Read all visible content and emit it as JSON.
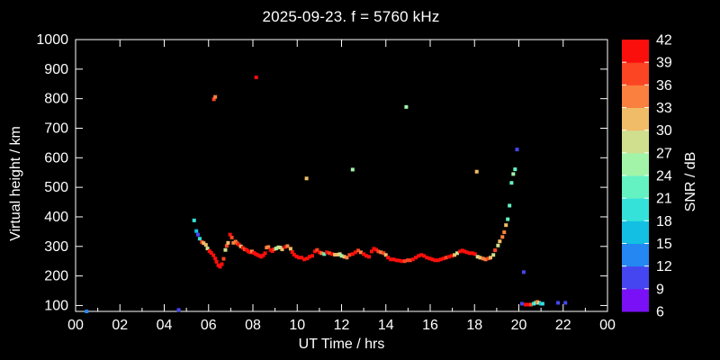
{
  "title": "2025-09-23. f = 5760 kHz",
  "axes": {
    "x_label": "UT Time / hrs",
    "y_label": "Virtual height / km",
    "x_tick_labels": [
      "00",
      "02",
      "04",
      "06",
      "08",
      "10",
      "12",
      "14",
      "16",
      "18",
      "20",
      "22",
      "00"
    ],
    "x_tick_hours": [
      0,
      2,
      4,
      6,
      8,
      10,
      12,
      14,
      16,
      18,
      20,
      22,
      24
    ],
    "x_minor_tick_hours": [
      1,
      3,
      5,
      7,
      9,
      11,
      13,
      15,
      17,
      19,
      21,
      23
    ],
    "y_tick_labels": [
      "100",
      "200",
      "300",
      "400",
      "500",
      "600",
      "700",
      "800",
      "900",
      "1000"
    ],
    "y_tick_values": [
      100,
      200,
      300,
      400,
      500,
      600,
      700,
      800,
      900,
      1000
    ]
  },
  "colorbar": {
    "label": "SNR / dB",
    "tick_values": [
      6,
      9,
      12,
      15,
      18,
      21,
      24,
      27,
      30,
      33,
      36,
      39,
      42
    ],
    "level_colors": [
      "#7a10f5",
      "#4646f0",
      "#2487f2",
      "#13bfe3",
      "#35e2d9",
      "#64f2c3",
      "#a2f4a9",
      "#cfdf8d",
      "#f0bc68",
      "#f9803e",
      "#fc4522",
      "#fb0f0c"
    ],
    "min": 6,
    "max": 42,
    "step": 3
  },
  "colors": {
    "background": "#000000",
    "frame": "#ffffff",
    "text": "#ffffff"
  },
  "chart_data": {
    "type": "scatter",
    "title": "2025-09-23. f = 5760 kHz",
    "xlabel": "UT Time / hrs",
    "ylabel": "Virtual height / km",
    "colorbar_label": "SNR / dB",
    "xlim": [
      0,
      24
    ],
    "ylim": [
      80,
      1000
    ],
    "colorbar_range": [
      6,
      42
    ],
    "grid": false,
    "point_format": [
      "ut_hours",
      "virtual_height_km",
      "snr_db"
    ],
    "points": [
      [
        5.35,
        388,
        19
      ],
      [
        5.45,
        352,
        16
      ],
      [
        5.52,
        340,
        10
      ],
      [
        5.6,
        326,
        19
      ],
      [
        5.7,
        315,
        37
      ],
      [
        5.78,
        311,
        31
      ],
      [
        5.88,
        305,
        31
      ],
      [
        5.95,
        293,
        28
      ],
      [
        6.04,
        284,
        40
      ],
      [
        6.12,
        278,
        40
      ],
      [
        6.22,
        270,
        40
      ],
      [
        6.3,
        259,
        40
      ],
      [
        6.36,
        248,
        40
      ],
      [
        6.44,
        236,
        40
      ],
      [
        6.52,
        231,
        40
      ],
      [
        6.6,
        240,
        40
      ],
      [
        6.68,
        258,
        37
      ],
      [
        6.76,
        288,
        28
      ],
      [
        6.82,
        302,
        37
      ],
      [
        6.88,
        312,
        31
      ],
      [
        6.97,
        340,
        40
      ],
      [
        7.05,
        330,
        37
      ],
      [
        7.12,
        312,
        34
      ],
      [
        7.22,
        316,
        34
      ],
      [
        7.3,
        310,
        37
      ],
      [
        7.38,
        305,
        40
      ],
      [
        7.46,
        300,
        31
      ],
      [
        7.55,
        295,
        40
      ],
      [
        7.63,
        290,
        37
      ],
      [
        7.72,
        288,
        40
      ],
      [
        7.8,
        283,
        40
      ],
      [
        7.88,
        280,
        40
      ],
      [
        7.96,
        283,
        34
      ],
      [
        8.05,
        278,
        40
      ],
      [
        8.13,
        274,
        40
      ],
      [
        8.22,
        271,
        40
      ],
      [
        8.3,
        268,
        40
      ],
      [
        8.38,
        265,
        40
      ],
      [
        8.47,
        270,
        40
      ],
      [
        8.55,
        277,
        40
      ],
      [
        8.62,
        296,
        34
      ],
      [
        8.7,
        298,
        34
      ],
      [
        8.8,
        288,
        40
      ],
      [
        8.88,
        284,
        40
      ],
      [
        8.96,
        290,
        37
      ],
      [
        9.05,
        293,
        25
      ],
      [
        9.15,
        297,
        28
      ],
      [
        9.24,
        296,
        28
      ],
      [
        9.32,
        290,
        31
      ],
      [
        9.45,
        298,
        40
      ],
      [
        9.56,
        301,
        34
      ],
      [
        9.7,
        292,
        31
      ],
      [
        9.78,
        281,
        40
      ],
      [
        9.86,
        272,
        40
      ],
      [
        9.97,
        266,
        40
      ],
      [
        10.08,
        262,
        40
      ],
      [
        10.2,
        262,
        40
      ],
      [
        10.32,
        256,
        40
      ],
      [
        10.45,
        259,
        40
      ],
      [
        10.56,
        265,
        40
      ],
      [
        10.68,
        268,
        40
      ],
      [
        10.8,
        283,
        40
      ],
      [
        10.9,
        288,
        37
      ],
      [
        11.0,
        280,
        40
      ],
      [
        11.1,
        277,
        34
      ],
      [
        11.22,
        274,
        22
      ],
      [
        11.34,
        280,
        40
      ],
      [
        11.46,
        277,
        37
      ],
      [
        11.58,
        274,
        40
      ],
      [
        11.7,
        272,
        31
      ],
      [
        11.82,
        272,
        31
      ],
      [
        11.92,
        274,
        28
      ],
      [
        12.0,
        268,
        25
      ],
      [
        12.12,
        265,
        31
      ],
      [
        12.24,
        262,
        34
      ],
      [
        12.36,
        271,
        37
      ],
      [
        12.5,
        274,
        40
      ],
      [
        12.62,
        280,
        40
      ],
      [
        12.75,
        286,
        37
      ],
      [
        12.87,
        280,
        34
      ],
      [
        13.0,
        274,
        40
      ],
      [
        13.12,
        268,
        40
      ],
      [
        13.24,
        265,
        40
      ],
      [
        13.36,
        283,
        40
      ],
      [
        13.46,
        292,
        40
      ],
      [
        13.56,
        289,
        40
      ],
      [
        13.66,
        283,
        37
      ],
      [
        13.78,
        280,
        34
      ],
      [
        13.9,
        277,
        37
      ],
      [
        14.0,
        271,
        31
      ],
      [
        14.1,
        262,
        40
      ],
      [
        14.22,
        256,
        40
      ],
      [
        14.35,
        256,
        40
      ],
      [
        14.48,
        253,
        40
      ],
      [
        14.6,
        252,
        40
      ],
      [
        14.72,
        250,
        40
      ],
      [
        14.85,
        250,
        37
      ],
      [
        14.98,
        253,
        37
      ],
      [
        15.1,
        253,
        37
      ],
      [
        15.22,
        256,
        40
      ],
      [
        15.35,
        262,
        40
      ],
      [
        15.48,
        268,
        40
      ],
      [
        15.6,
        271,
        40
      ],
      [
        15.72,
        268,
        40
      ],
      [
        15.85,
        262,
        40
      ],
      [
        15.98,
        259,
        40
      ],
      [
        16.1,
        256,
        40
      ],
      [
        16.22,
        253,
        40
      ],
      [
        16.35,
        253,
        40
      ],
      [
        16.48,
        256,
        40
      ],
      [
        16.6,
        259,
        40
      ],
      [
        16.72,
        262,
        37
      ],
      [
        16.85,
        265,
        40
      ],
      [
        16.98,
        268,
        40
      ],
      [
        17.1,
        271,
        31
      ],
      [
        17.22,
        277,
        28
      ],
      [
        17.35,
        283,
        40
      ],
      [
        17.45,
        286,
        40
      ],
      [
        17.55,
        283,
        40
      ],
      [
        17.65,
        280,
        40
      ],
      [
        17.78,
        277,
        40
      ],
      [
        17.9,
        277,
        40
      ],
      [
        18.02,
        274,
        40
      ],
      [
        18.14,
        265,
        28
      ],
      [
        18.25,
        262,
        31
      ],
      [
        18.38,
        259,
        34
      ],
      [
        18.5,
        256,
        34
      ],
      [
        18.62,
        259,
        37
      ],
      [
        18.72,
        262,
        31
      ],
      [
        18.85,
        271,
        28
      ],
      [
        18.93,
        287,
        37
      ],
      [
        19.06,
        303,
        28
      ],
      [
        19.14,
        317,
        31
      ],
      [
        19.26,
        332,
        34
      ],
      [
        19.34,
        348,
        34
      ],
      [
        19.42,
        372,
        31
      ],
      [
        19.5,
        392,
        22
      ],
      [
        19.58,
        438,
        22
      ],
      [
        19.67,
        515,
        22
      ],
      [
        19.75,
        545,
        25
      ],
      [
        19.83,
        561,
        22
      ],
      [
        19.92,
        628,
        10
      ],
      [
        0.5,
        80,
        13
      ],
      [
        4.65,
        85,
        10
      ],
      [
        6.24,
        798,
        37
      ],
      [
        6.3,
        806,
        34
      ],
      [
        8.15,
        872,
        40
      ],
      [
        10.42,
        530,
        31
      ],
      [
        12.5,
        560,
        25
      ],
      [
        14.92,
        772,
        25
      ],
      [
        18.1,
        553,
        31
      ],
      [
        20.22,
        213,
        10
      ],
      [
        20.14,
        106,
        10
      ],
      [
        20.3,
        103,
        40
      ],
      [
        20.42,
        103,
        40
      ],
      [
        20.55,
        103,
        37
      ],
      [
        20.67,
        106,
        19
      ],
      [
        20.75,
        109,
        22
      ],
      [
        20.83,
        112,
        34
      ],
      [
        20.91,
        109,
        28
      ],
      [
        20.99,
        106,
        16
      ],
      [
        21.07,
        106,
        19
      ],
      [
        21.77,
        109,
        10
      ],
      [
        22.1,
        109,
        10
      ]
    ]
  }
}
